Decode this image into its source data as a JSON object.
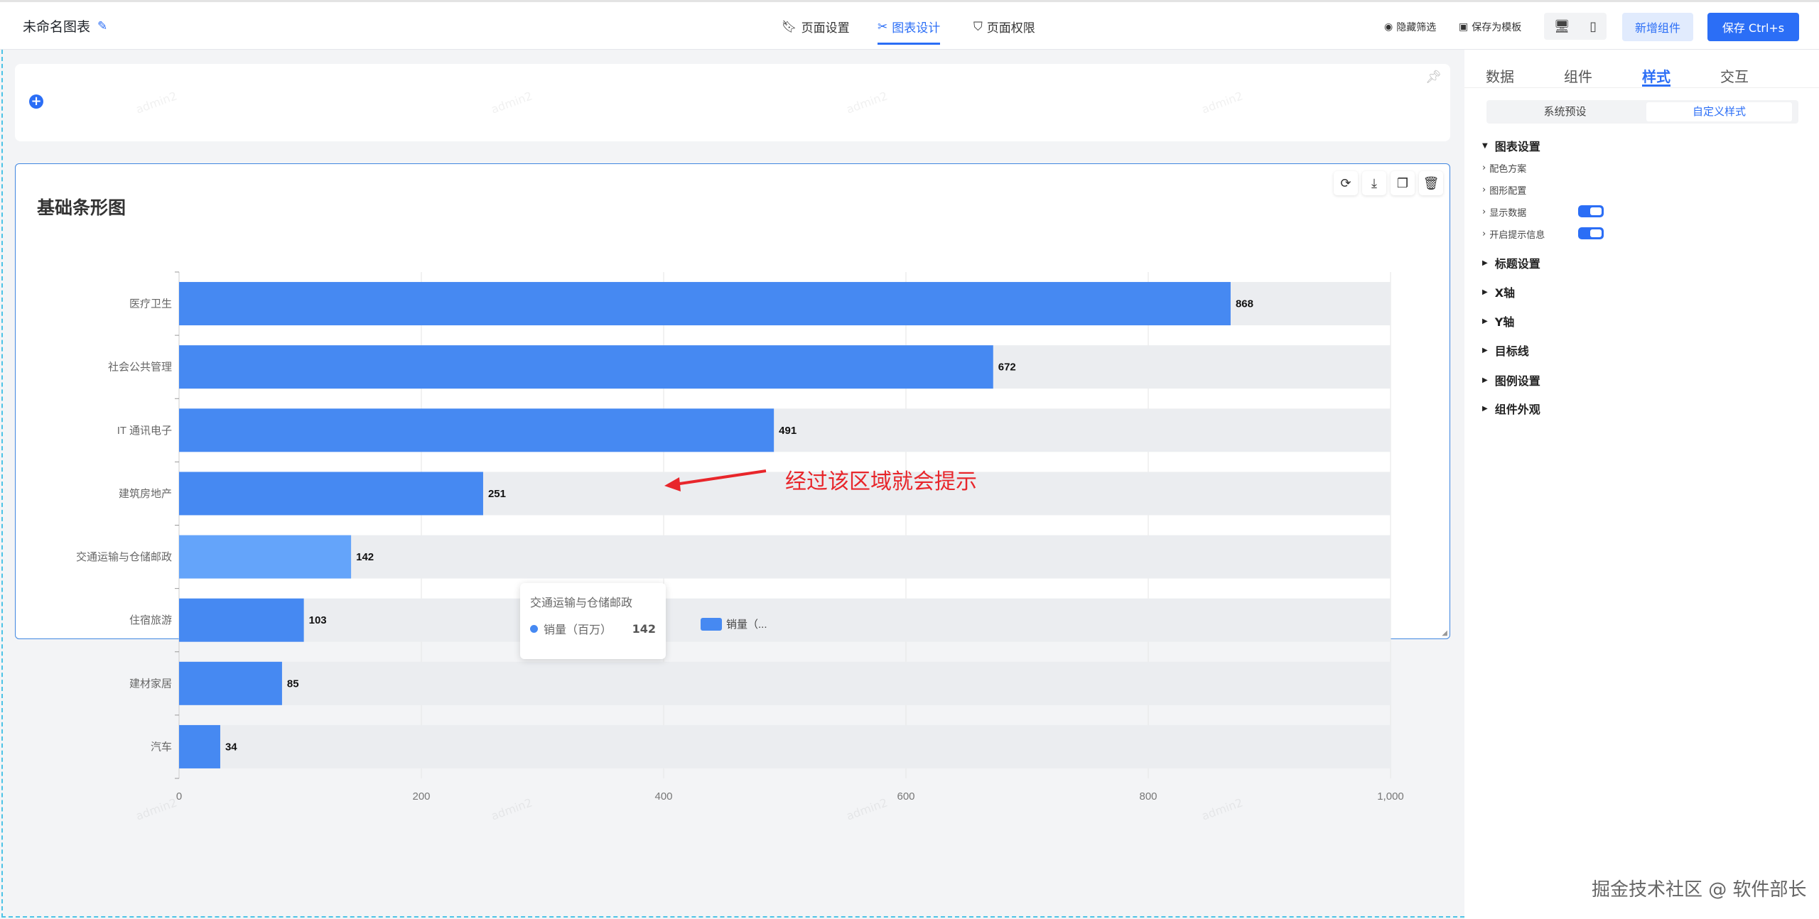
{
  "header": {
    "title": "未命名图表",
    "tabs": [
      {
        "label": "页面设置",
        "icon": "bookmark-icon"
      },
      {
        "label": "图表设计",
        "icon": "design-icon",
        "active": true
      },
      {
        "label": "页面权限",
        "icon": "shield-icon"
      }
    ],
    "hide_filter": "隐藏筛选",
    "save_template": "保存为模板",
    "add_component": "新增组件",
    "save": "保存 Ctrl+s"
  },
  "panel": {
    "tabs": [
      "数据",
      "组件",
      "样式",
      "交互"
    ],
    "active_tab": "样式",
    "segments": [
      "系统预设",
      "自定义样式"
    ],
    "active_segment": "自定义样式",
    "chart_settings": "图表设置",
    "sub_items": [
      "配色方案",
      "图形配置",
      "显示数据",
      "开启提示信息"
    ],
    "toggles": {
      "show_data": true,
      "tooltip": true
    },
    "sections": [
      "标题设置",
      "X轴",
      "Y轴",
      "目标线",
      "图例设置",
      "组件外观"
    ]
  },
  "chart_card": {
    "title": "基础条形图"
  },
  "chart_data": {
    "type": "bar",
    "orientation": "horizontal",
    "title": "基础条形图",
    "categories": [
      "医疗卫生",
      "社会公共管理",
      "IT 通讯电子",
      "建筑房地产",
      "交通运输与仓储邮政",
      "住宿旅游",
      "建材家居",
      "汽车"
    ],
    "series": [
      {
        "name": "销量（百万）",
        "values": [
          868,
          672,
          491,
          251,
          142,
          103,
          85,
          34
        ]
      }
    ],
    "xlim": [
      0,
      1000
    ],
    "xticks": [
      "0",
      "200",
      "400",
      "600",
      "800",
      "1,000"
    ],
    "grid": true,
    "show_data_labels": true,
    "legend": "bottom",
    "legend_label": "销量（...",
    "highlighted": "交通运输与仓储邮政",
    "colors": {
      "bar": "#4689f2",
      "highlight": "#64a4fa",
      "track": "#ebedf0"
    }
  },
  "tooltip": {
    "title": "交通运输与仓储邮政",
    "series": "销量（百万）",
    "value": "142"
  },
  "annotation": "经过该区域就会提示",
  "watermark": "admin2",
  "credit": "掘金技术社区 @ 软件部长"
}
